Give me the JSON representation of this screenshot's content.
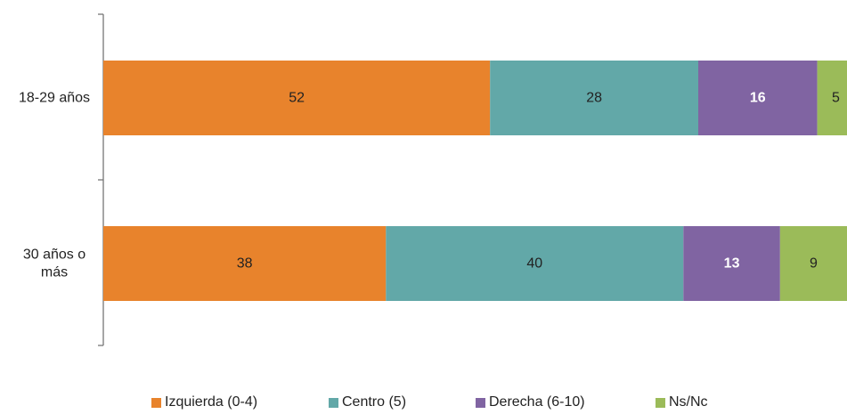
{
  "chart_data": {
    "type": "bar",
    "orientation": "horizontal",
    "stacked": true,
    "categories": [
      [
        "18-29 años"
      ],
      [
        "30 años o",
        "más"
      ]
    ],
    "series": [
      {
        "name": "Izquierda (0-4)",
        "color": "#E8832C",
        "values": [
          52,
          38
        ],
        "label_color": "#222222"
      },
      {
        "name": "Centro (5)",
        "color": "#62A8A8",
        "values": [
          28,
          40
        ],
        "label_color": "#222222"
      },
      {
        "name": "Derecha (6-10)",
        "color": "#8064A2",
        "values": [
          16,
          13
        ],
        "label_color": "#ffffff"
      },
      {
        "name": "Ns/Nc",
        "color": "#9BBB59",
        "values": [
          5,
          9
        ],
        "label_color": "#222222"
      }
    ],
    "xlim": [
      0,
      100
    ],
    "grid": false,
    "legend": "bottom"
  }
}
